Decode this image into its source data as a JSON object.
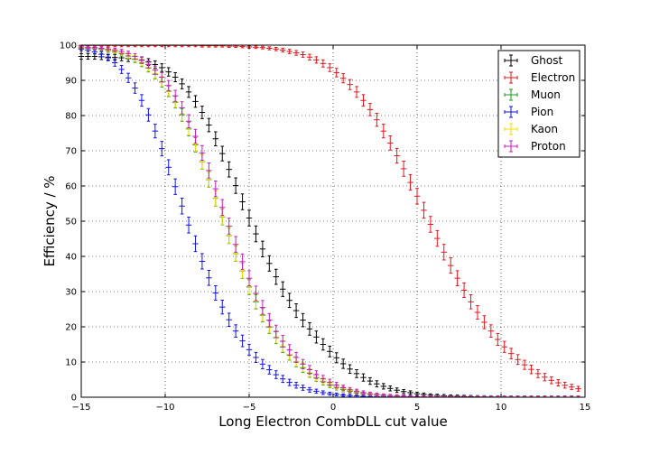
{
  "chart_data": {
    "type": "scatter",
    "title": "",
    "xlabel": "Long Electron CombDLL cut value",
    "ylabel": "Efficiency / %",
    "xlim": [
      -15,
      15
    ],
    "ylim": [
      0,
      100
    ],
    "xticks": [
      -15,
      -10,
      -5,
      0,
      5,
      10,
      15
    ],
    "yticks": [
      0,
      10,
      20,
      30,
      40,
      50,
      60,
      70,
      80,
      90,
      100
    ],
    "grid": true,
    "legend_position": "top-right",
    "x": [
      -15.0,
      -14.6,
      -14.2,
      -13.8,
      -13.4,
      -13.0,
      -12.6,
      -12.2,
      -11.8,
      -11.4,
      -11.0,
      -10.6,
      -10.2,
      -9.8,
      -9.4,
      -9.0,
      -8.6,
      -8.2,
      -7.8,
      -7.4,
      -7.0,
      -6.6,
      -6.2,
      -5.8,
      -5.4,
      -5.0,
      -4.6,
      -4.2,
      -3.8,
      -3.4,
      -3.0,
      -2.6,
      -2.2,
      -1.8,
      -1.4,
      -1.0,
      -0.6,
      -0.2,
      0.2,
      0.6,
      1.0,
      1.4,
      1.8,
      2.2,
      2.6,
      3.0,
      3.4,
      3.8,
      4.2,
      4.6,
      5.0,
      5.4,
      5.8,
      6.2,
      6.6,
      7.0,
      7.4,
      7.8,
      8.2,
      8.6,
      9.0,
      9.4,
      9.8,
      10.2,
      10.6,
      11.0,
      11.4,
      11.8,
      12.2,
      12.6,
      13.0,
      13.4,
      13.8,
      14.2,
      14.6
    ],
    "series": [
      {
        "name": "Ghost",
        "color": "#000000",
        "values": [
          96.8,
          96.8,
          96.8,
          96.7,
          96.6,
          96.5,
          96.4,
          96.2,
          96.0,
          95.7,
          95.2,
          94.5,
          93.6,
          92.4,
          90.9,
          89.0,
          86.7,
          84.0,
          80.9,
          77.3,
          73.4,
          69.2,
          64.7,
          60.1,
          55.5,
          50.9,
          46.4,
          42.1,
          38.0,
          34.2,
          30.7,
          27.5,
          24.6,
          21.9,
          19.4,
          17.1,
          15.0,
          13.0,
          11.2,
          9.5,
          8.0,
          6.7,
          5.6,
          4.6,
          3.8,
          3.1,
          2.5,
          2.0,
          1.6,
          1.3,
          1.0,
          0.8,
          0.6,
          0.5,
          0.4,
          0.3,
          0.25,
          0.2,
          0.15,
          0.1,
          0.08,
          0.06,
          0.05,
          0.04,
          0.03,
          0.02,
          0.02,
          0.01,
          0.01,
          0.01,
          0.0,
          0.0,
          0.0,
          0.0,
          0.0
        ]
      },
      {
        "name": "Electron",
        "color": "#e8141c",
        "values": [
          99.9,
          99.9,
          99.9,
          99.9,
          99.9,
          99.9,
          99.9,
          99.9,
          99.9,
          99.9,
          99.9,
          99.9,
          99.9,
          99.9,
          99.9,
          99.9,
          99.9,
          99.9,
          99.8,
          99.8,
          99.8,
          99.8,
          99.7,
          99.7,
          99.6,
          99.5,
          99.4,
          99.3,
          99.1,
          98.9,
          98.6,
          98.2,
          97.8,
          97.3,
          96.6,
          95.8,
          94.8,
          93.6,
          92.2,
          90.6,
          88.8,
          86.7,
          84.3,
          81.7,
          78.8,
          75.6,
          72.2,
          68.6,
          64.9,
          61.0,
          57.1,
          53.1,
          49.1,
          45.1,
          41.2,
          37.4,
          33.8,
          30.4,
          27.1,
          24.1,
          21.3,
          18.8,
          16.4,
          14.3,
          12.4,
          10.7,
          9.2,
          7.9,
          6.7,
          5.7,
          4.8,
          4.1,
          3.4,
          2.9,
          2.4
        ]
      },
      {
        "name": "Muon",
        "color": "#1a9a1a",
        "values": [
          99.2,
          99.1,
          99.0,
          98.8,
          98.5,
          98.1,
          97.6,
          96.9,
          96.0,
          94.9,
          93.5,
          91.7,
          89.5,
          86.9,
          83.8,
          80.2,
          76.2,
          71.7,
          66.9,
          61.8,
          56.5,
          51.2,
          45.9,
          40.8,
          35.9,
          31.3,
          27.1,
          23.3,
          19.9,
          16.9,
          14.3,
          12.0,
          10.0,
          8.3,
          6.8,
          5.5,
          4.4,
          3.5,
          2.8,
          2.2,
          1.7,
          1.3,
          1.0,
          0.8,
          0.6,
          0.45,
          0.35,
          0.25,
          0.18,
          0.13,
          0.1,
          0.07,
          0.05,
          0.04,
          0.03,
          0.02,
          0.02,
          0.01,
          0.01,
          0.01,
          0.0,
          0.0,
          0.0,
          0.0,
          0.0,
          0.0,
          0.0,
          0.0,
          0.0,
          0.0,
          0.0,
          0.0,
          0.0,
          0.0,
          0.0
        ]
      },
      {
        "name": "Pion",
        "color": "#1111ee",
        "values": [
          98.9,
          98.6,
          98.1,
          97.4,
          96.4,
          95.0,
          93.1,
          90.7,
          87.8,
          84.3,
          80.2,
          75.6,
          70.6,
          65.3,
          59.8,
          54.3,
          48.9,
          43.6,
          38.6,
          33.9,
          29.6,
          25.6,
          22.0,
          18.8,
          16.0,
          13.5,
          11.3,
          9.4,
          7.8,
          6.4,
          5.2,
          4.2,
          3.4,
          2.7,
          2.1,
          1.7,
          1.3,
          1.0,
          0.8,
          0.6,
          0.45,
          0.35,
          0.26,
          0.2,
          0.15,
          0.11,
          0.08,
          0.06,
          0.05,
          0.03,
          0.02,
          0.02,
          0.01,
          0.01,
          0.01,
          0.0,
          0.0,
          0.0,
          0.0,
          0.0,
          0.0,
          0.0,
          0.0,
          0.0,
          0.0,
          0.0,
          0.0,
          0.0,
          0.0,
          0.0,
          0.0,
          0.0,
          0.0,
          0.0,
          0.0
        ]
      },
      {
        "name": "Kaon",
        "color": "#f0dc00",
        "values": [
          99.4,
          99.3,
          99.2,
          99.0,
          98.7,
          98.3,
          97.8,
          97.1,
          96.2,
          95.1,
          93.7,
          91.9,
          89.7,
          87.1,
          84.0,
          80.4,
          76.4,
          71.9,
          67.0,
          61.9,
          56.6,
          51.3,
          46.0,
          40.9,
          36.0,
          31.5,
          27.3,
          23.5,
          20.1,
          17.1,
          14.5,
          12.2,
          10.2,
          8.5,
          7.0,
          5.7,
          4.6,
          3.7,
          3.0,
          2.4,
          1.9,
          1.5,
          1.2,
          0.9,
          0.7,
          0.55,
          0.42,
          0.32,
          0.24,
          0.18,
          0.13,
          0.1,
          0.07,
          0.05,
          0.04,
          0.03,
          0.02,
          0.02,
          0.01,
          0.01,
          0.01,
          0.0,
          0.0,
          0.0,
          0.0,
          0.0,
          0.0,
          0.0,
          0.0,
          0.0,
          0.0,
          0.0,
          0.0,
          0.0,
          0.0
        ]
      },
      {
        "name": "Proton",
        "color": "#c41cc4",
        "values": [
          99.5,
          99.4,
          99.3,
          99.1,
          98.9,
          98.6,
          98.2,
          97.6,
          96.8,
          95.8,
          94.5,
          92.9,
          90.9,
          88.5,
          85.6,
          82.2,
          78.4,
          74.1,
          69.4,
          64.4,
          59.2,
          53.9,
          48.6,
          43.4,
          38.5,
          33.8,
          29.5,
          25.5,
          21.9,
          18.7,
          15.9,
          13.4,
          11.3,
          9.4,
          7.8,
          6.4,
          5.2,
          4.2,
          3.4,
          2.7,
          2.1,
          1.7,
          1.3,
          1.0,
          0.8,
          0.6,
          0.46,
          0.35,
          0.27,
          0.2,
          0.15,
          0.11,
          0.08,
          0.06,
          0.05,
          0.03,
          0.02,
          0.02,
          0.01,
          0.01,
          0.01,
          0.0,
          0.0,
          0.0,
          0.0,
          0.0,
          0.0,
          0.0,
          0.0,
          0.0,
          0.0,
          0.0,
          0.0,
          0.0,
          0.0
        ]
      }
    ]
  }
}
